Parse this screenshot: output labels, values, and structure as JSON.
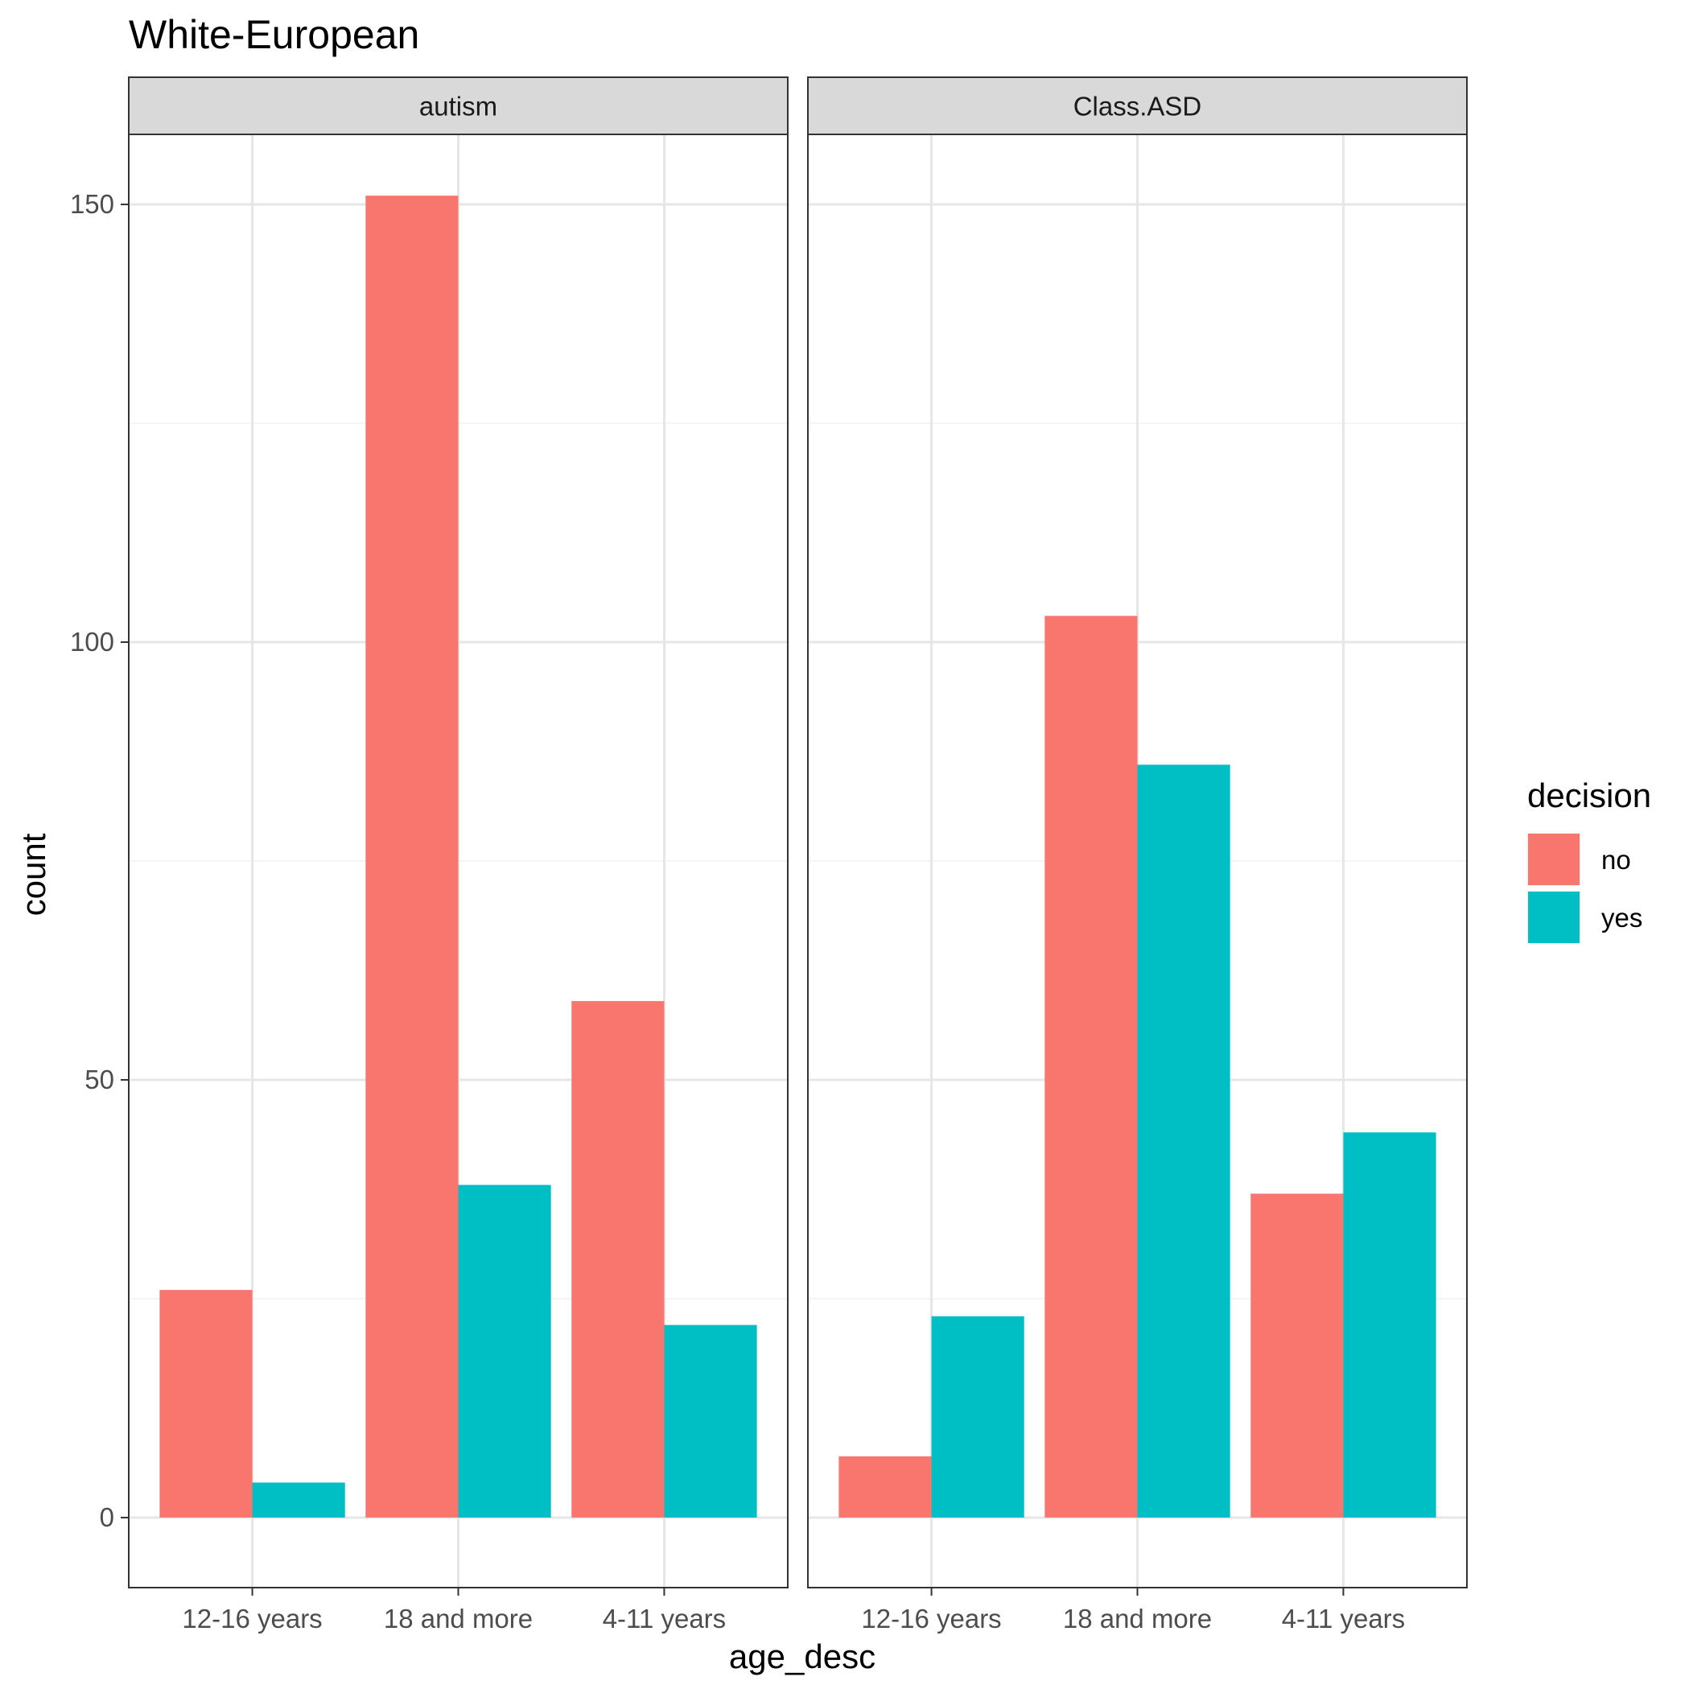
{
  "chart_data": {
    "type": "bar",
    "title": "White-European",
    "xlabel": "age_desc",
    "ylabel": "count",
    "ylim": [
      -8,
      158
    ],
    "yticks": [
      0,
      50,
      100,
      150
    ],
    "categories": [
      "12-16 years",
      "18 and more",
      "4-11 years"
    ],
    "legend": {
      "title": "decision",
      "position": "right",
      "entries": [
        {
          "name": "no",
          "color": "#F8766D"
        },
        {
          "name": "yes",
          "color": "#00BFC4"
        }
      ]
    },
    "grid": true,
    "panels": [
      {
        "label": "autism",
        "series": [
          {
            "name": "no",
            "values": [
              26,
              151,
              59
            ]
          },
          {
            "name": "yes",
            "values": [
              4,
              38,
              22
            ]
          }
        ]
      },
      {
        "label": "Class.ASD",
        "series": [
          {
            "name": "no",
            "values": [
              7,
              103,
              37
            ]
          },
          {
            "name": "yes",
            "values": [
              23,
              86,
              44
            ]
          }
        ]
      }
    ]
  }
}
